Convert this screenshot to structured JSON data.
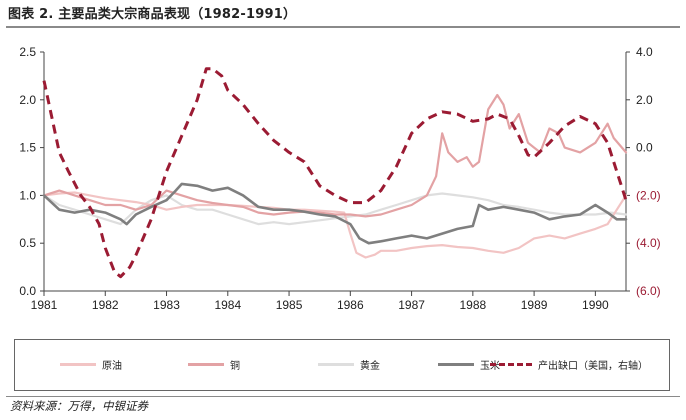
{
  "title": "图表 2. 主要品类大宗商品表现（1982-1991）",
  "source": "资料来源：万得，中银证券",
  "colors": {
    "crude": "#f2c4c4",
    "copper": "#e3a2a4",
    "gold": "#dedede",
    "corn": "#7f7f7f",
    "gap": "#9b1b33",
    "axis": "#444444"
  },
  "chart_data": {
    "type": "line",
    "title": "图表 2. 主要品类大宗商品表现（1982-1991）",
    "xlabel": "",
    "ylabel": "",
    "x_ticks": [
      "1981",
      "1982",
      "1983",
      "1984",
      "1985",
      "1986",
      "1987",
      "1988",
      "1989",
      "1990"
    ],
    "xlim": [
      1981.0,
      1990.5
    ],
    "ylim_left": [
      0.0,
      2.5
    ],
    "left_ticks": [
      "0.0",
      "0.5",
      "1.0",
      "1.5",
      "2.0",
      "2.5"
    ],
    "ylim_right": [
      -6.0,
      4.0
    ],
    "right_ticks": [
      "(6.0)",
      "(4.0)",
      "(2.0)",
      "0.0",
      "2.0",
      "4.0"
    ],
    "grid": false,
    "legend_position": "bottom",
    "series": [
      {
        "name": "原油",
        "axis": "left",
        "style": "solid",
        "x": [
          1981.0,
          1981.25,
          1981.5,
          1981.75,
          1982.0,
          1982.25,
          1982.5,
          1982.75,
          1983.0,
          1983.25,
          1983.5,
          1983.75,
          1984.0,
          1984.25,
          1984.5,
          1984.75,
          1985.0,
          1985.25,
          1985.5,
          1985.75,
          1985.9,
          1986.0,
          1986.1,
          1986.25,
          1986.4,
          1986.5,
          1986.75,
          1987.0,
          1987.25,
          1987.5,
          1987.75,
          1988.0,
          1988.25,
          1988.5,
          1988.75,
          1989.0,
          1989.25,
          1989.5,
          1989.75,
          1990.0,
          1990.2,
          1990.35,
          1990.5
        ],
        "y": [
          1.0,
          1.02,
          1.03,
          1.0,
          0.97,
          0.95,
          0.93,
          0.9,
          0.85,
          0.88,
          0.9,
          0.9,
          0.9,
          0.89,
          0.88,
          0.87,
          0.85,
          0.85,
          0.84,
          0.83,
          0.82,
          0.6,
          0.4,
          0.35,
          0.38,
          0.42,
          0.42,
          0.45,
          0.47,
          0.48,
          0.46,
          0.45,
          0.42,
          0.4,
          0.45,
          0.55,
          0.58,
          0.55,
          0.6,
          0.65,
          0.7,
          0.85,
          1.0
        ]
      },
      {
        "name": "铜",
        "axis": "left",
        "style": "solid",
        "x": [
          1981.0,
          1981.25,
          1981.5,
          1981.75,
          1982.0,
          1982.25,
          1982.5,
          1982.75,
          1983.0,
          1983.25,
          1983.5,
          1983.75,
          1984.0,
          1984.25,
          1984.5,
          1984.75,
          1985.0,
          1985.25,
          1985.5,
          1985.75,
          1986.0,
          1986.25,
          1986.5,
          1986.75,
          1987.0,
          1987.25,
          1987.4,
          1987.5,
          1987.6,
          1987.75,
          1987.9,
          1988.0,
          1988.1,
          1988.25,
          1988.4,
          1988.5,
          1988.6,
          1988.75,
          1988.9,
          1989.0,
          1989.1,
          1989.25,
          1989.4,
          1989.5,
          1989.75,
          1990.0,
          1990.2,
          1990.3,
          1990.5
        ],
        "y": [
          1.0,
          1.05,
          1.0,
          0.95,
          0.9,
          0.9,
          0.85,
          0.9,
          1.05,
          1.0,
          0.95,
          0.92,
          0.9,
          0.88,
          0.82,
          0.8,
          0.82,
          0.83,
          0.82,
          0.8,
          0.8,
          0.78,
          0.8,
          0.85,
          0.9,
          1.0,
          1.2,
          1.65,
          1.45,
          1.35,
          1.4,
          1.3,
          1.35,
          1.9,
          2.05,
          1.95,
          1.7,
          1.85,
          1.55,
          1.5,
          1.45,
          1.7,
          1.65,
          1.5,
          1.45,
          1.55,
          1.75,
          1.6,
          1.45
        ]
      },
      {
        "name": "黄金",
        "axis": "left",
        "style": "solid",
        "x": [
          1981.0,
          1981.25,
          1981.5,
          1981.75,
          1982.0,
          1982.25,
          1982.5,
          1982.75,
          1983.0,
          1983.25,
          1983.5,
          1983.75,
          1984.0,
          1984.25,
          1984.5,
          1984.75,
          1985.0,
          1985.25,
          1985.5,
          1985.75,
          1986.0,
          1986.25,
          1986.5,
          1986.75,
          1987.0,
          1987.25,
          1987.5,
          1987.75,
          1988.0,
          1988.25,
          1988.5,
          1988.75,
          1989.0,
          1989.25,
          1989.5,
          1989.75,
          1990.0,
          1990.25,
          1990.5
        ],
        "y": [
          1.0,
          0.9,
          0.85,
          0.8,
          0.75,
          0.7,
          0.85,
          0.95,
          1.0,
          0.9,
          0.85,
          0.85,
          0.8,
          0.75,
          0.7,
          0.72,
          0.7,
          0.72,
          0.74,
          0.76,
          0.78,
          0.8,
          0.85,
          0.9,
          0.95,
          1.0,
          1.02,
          1.0,
          0.98,
          0.95,
          0.9,
          0.88,
          0.85,
          0.82,
          0.8,
          0.8,
          0.8,
          0.82,
          0.8
        ]
      },
      {
        "name": "玉米",
        "axis": "left",
        "style": "solid",
        "x": [
          1981.0,
          1981.25,
          1981.5,
          1981.75,
          1982.0,
          1982.25,
          1982.35,
          1982.5,
          1982.75,
          1983.0,
          1983.15,
          1983.25,
          1983.5,
          1983.75,
          1984.0,
          1984.25,
          1984.5,
          1984.75,
          1985.0,
          1985.25,
          1985.5,
          1985.75,
          1986.0,
          1986.15,
          1986.3,
          1986.5,
          1986.75,
          1987.0,
          1987.25,
          1987.5,
          1987.75,
          1988.0,
          1988.1,
          1988.25,
          1988.5,
          1988.75,
          1989.0,
          1989.25,
          1989.5,
          1989.75,
          1990.0,
          1990.2,
          1990.35,
          1990.5
        ],
        "y": [
          1.0,
          0.85,
          0.82,
          0.85,
          0.82,
          0.75,
          0.7,
          0.8,
          0.88,
          0.95,
          1.05,
          1.12,
          1.1,
          1.05,
          1.08,
          1.0,
          0.88,
          0.85,
          0.85,
          0.83,
          0.8,
          0.78,
          0.7,
          0.55,
          0.5,
          0.52,
          0.55,
          0.58,
          0.55,
          0.6,
          0.65,
          0.68,
          0.9,
          0.85,
          0.88,
          0.85,
          0.82,
          0.75,
          0.78,
          0.8,
          0.9,
          0.82,
          0.75,
          0.75
        ]
      },
      {
        "name": "产出缺口（美国，右轴）",
        "axis": "right",
        "style": "dashed",
        "x": [
          1981.0,
          1981.15,
          1981.25,
          1981.4,
          1981.6,
          1981.75,
          1981.9,
          1982.0,
          1982.15,
          1982.25,
          1982.4,
          1982.5,
          1982.75,
          1983.0,
          1983.25,
          1983.5,
          1983.65,
          1983.75,
          1983.9,
          1984.0,
          1984.25,
          1984.5,
          1984.75,
          1985.0,
          1985.25,
          1985.5,
          1985.75,
          1986.0,
          1986.25,
          1986.5,
          1986.75,
          1987.0,
          1987.25,
          1987.5,
          1987.75,
          1988.0,
          1988.25,
          1988.4,
          1988.6,
          1988.75,
          1988.9,
          1989.0,
          1989.25,
          1989.5,
          1989.75,
          1990.0,
          1990.2,
          1990.35,
          1990.5
        ],
        "y": [
          2.8,
          1.0,
          -0.2,
          -1.0,
          -2.0,
          -2.5,
          -3.2,
          -4.2,
          -5.2,
          -5.4,
          -5.0,
          -4.5,
          -3.0,
          -1.0,
          0.5,
          2.0,
          3.3,
          3.3,
          3.0,
          2.4,
          1.8,
          1.0,
          0.3,
          -0.2,
          -0.6,
          -1.6,
          -2.0,
          -2.3,
          -2.3,
          -1.8,
          -0.8,
          0.6,
          1.2,
          1.5,
          1.4,
          1.1,
          1.2,
          1.4,
          1.2,
          0.5,
          -0.3,
          -0.4,
          0.2,
          0.9,
          1.3,
          1.0,
          0.2,
          -1.0,
          -2.2
        ]
      }
    ]
  }
}
